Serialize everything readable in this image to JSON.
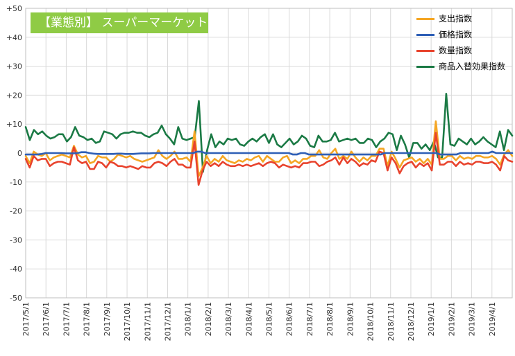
{
  "chart_data": {
    "type": "line",
    "title": "【業態別】 スーパーマーケット",
    "xlabel": "",
    "ylabel": "",
    "ylim": [
      -50,
      50
    ],
    "y_ticks": [
      "+50",
      "+40",
      "+30",
      "+20",
      "+10",
      "0",
      "-10",
      "-20",
      "-30",
      "-40",
      "-50"
    ],
    "x_tick_labels": [
      "2017/5/1",
      "2017/6/1",
      "2017/7/1",
      "2017/8/1",
      "2017/9/1",
      "2017/10/1",
      "2017/11/1",
      "2017/12/1",
      "2018/1/1",
      "2018/2/1",
      "2018/3/1",
      "2018/4/1",
      "2018/5/1",
      "2018/6/1",
      "2018/7/1",
      "2018/8/1",
      "2018/9/1",
      "2018/10/1",
      "2018/11/1",
      "2018/12/1",
      "2019/1/1",
      "2019/2/1",
      "2019/3/1",
      "2019/4/1"
    ],
    "grid": true,
    "legend_position": "top-right",
    "series": [
      {
        "name": "支出指数",
        "color": "#f5a623",
        "values": [
          -1,
          -3.5,
          0.5,
          -0.5,
          -1,
          0,
          -2.5,
          -1.5,
          -1,
          -0.5,
          -1,
          -1.5,
          2.5,
          -0.5,
          -1.5,
          -1,
          -3.5,
          -3,
          -1,
          -1.5,
          -1.5,
          -3,
          -2,
          -0.5,
          -1,
          -1.5,
          -1,
          -2,
          -2.5,
          -3,
          -2.5,
          -2,
          -1.5,
          1,
          -1,
          -2,
          -1,
          0.5,
          -2,
          -2,
          -1.5,
          -3,
          7.5,
          -8,
          -5,
          -1,
          -3.5,
          -2,
          -3,
          -1,
          -2.5,
          -3,
          -3.5,
          -2.5,
          -3,
          -2,
          -2.5,
          -1.5,
          -1,
          -3,
          -1,
          -2,
          -3,
          -3,
          -1.5,
          -1,
          -3.5,
          -2.5,
          -3.5,
          -2,
          -2,
          -1,
          -1,
          1,
          -1.5,
          -2,
          0,
          1.5,
          -2,
          -1,
          -2,
          0.5,
          -1.5,
          -3,
          -1.5,
          -2.5,
          -1,
          -1,
          1.5,
          1.5,
          -4.5,
          0.5,
          -2,
          -5,
          -2.5,
          -2,
          -1.5,
          -3,
          -2,
          -3.5,
          -2,
          -4,
          11,
          -2,
          -2,
          -1,
          -1,
          -2.5,
          -1,
          -2,
          -1.5,
          -2,
          -1,
          -1,
          -1.5,
          -1.5,
          -1,
          -2,
          -4,
          -0.5,
          1,
          -1
        ]
      },
      {
        "name": "価格指数",
        "color": "#2e5fb6",
        "values": [
          -0.5,
          -0.5,
          -0.5,
          -0.5,
          -0.3,
          0,
          0,
          0,
          0,
          0,
          -0.1,
          -0.1,
          -0.1,
          0,
          0.3,
          0.3,
          0,
          -0.2,
          -0.3,
          -0.3,
          -0.3,
          -0.3,
          -0.3,
          -0.2,
          -0.2,
          -0.3,
          -0.3,
          -0.3,
          -0.2,
          -0.1,
          -0.1,
          -0.1,
          0,
          0,
          0,
          0,
          0,
          0,
          0,
          0,
          0,
          0,
          0,
          0.5,
          0.5,
          0,
          0,
          0,
          0,
          0,
          0,
          0,
          0,
          0,
          0,
          0,
          0,
          0,
          0,
          0,
          0,
          0,
          0,
          0,
          0,
          0,
          0,
          -0.5,
          -0.5,
          0,
          0,
          -0.5,
          -0.5,
          -0.5,
          -0.5,
          -0.5,
          -0.5,
          -0.5,
          -0.5,
          -0.5,
          -0.5,
          -0.5,
          -0.5,
          -0.5,
          -0.5,
          -0.5,
          -0.5,
          -0.5,
          -0.5,
          -0.5,
          0,
          0,
          0,
          0,
          0,
          0,
          0,
          0,
          0,
          0,
          0,
          0,
          0,
          0,
          -0.5,
          -0.5,
          -0.5,
          -0.5,
          -0.5,
          0,
          0,
          0,
          0,
          0,
          0,
          0,
          0,
          0.5,
          0,
          0,
          0,
          0,
          0
        ]
      },
      {
        "name": "数量指数",
        "color": "#e8432d",
        "values": [
          -2,
          -5,
          -1,
          -2.5,
          -2,
          -2,
          -4.5,
          -3.5,
          -3,
          -3,
          -3.5,
          -4,
          2,
          -2.5,
          -3.5,
          -3,
          -5.5,
          -5.5,
          -3,
          -3.5,
          -5,
          -3,
          -3.5,
          -4.5,
          -4.5,
          -5,
          -4.5,
          -5,
          -5.5,
          -4.5,
          -5,
          -5,
          -3.5,
          -3,
          -3.5,
          -4.5,
          -3,
          -2,
          -4,
          -4,
          -5,
          -5,
          4,
          -11,
          -6,
          -3,
          -4.5,
          -3.5,
          -4.5,
          -3,
          -4,
          -4.5,
          -4.5,
          -4,
          -4.5,
          -4,
          -4.5,
          -4,
          -3.5,
          -4.5,
          -3.5,
          -3,
          -3.5,
          -5,
          -4,
          -4.5,
          -5,
          -4.5,
          -5,
          -3.5,
          -3.5,
          -3,
          -3,
          -4.5,
          -4,
          -3,
          -2.5,
          -1.5,
          -4,
          -1.5,
          -3.5,
          -2,
          -3,
          -4.5,
          -3.5,
          -4,
          -2.5,
          -3,
          0.5,
          0,
          -6,
          -1.5,
          -3.5,
          -7,
          -4.5,
          -3.5,
          -3,
          -5,
          -3.5,
          -4.5,
          -3.5,
          -6,
          7,
          -4,
          -4,
          -3,
          -3,
          -4.5,
          -3,
          -4,
          -3.5,
          -4,
          -3,
          -3,
          -3.5,
          -3.5,
          -3,
          -4,
          -6,
          -1,
          -2.5,
          -3
        ]
      },
      {
        "name": "商品入替効果指数",
        "color": "#1b7a45",
        "values": [
          9,
          4.5,
          8,
          6.5,
          7.5,
          6,
          5,
          5.5,
          6.5,
          6.5,
          4,
          5.5,
          9,
          6,
          5.5,
          4.5,
          5,
          3.5,
          4,
          7.5,
          7,
          6.5,
          5,
          6.5,
          7,
          7,
          7.5,
          7,
          7,
          6,
          5.5,
          6.5,
          7,
          9.5,
          6.5,
          5,
          3,
          9,
          5,
          4.5,
          5,
          5.5,
          18,
          -6.5,
          1,
          6.5,
          2,
          4,
          3,
          5,
          4.5,
          5,
          3,
          2.5,
          4,
          5,
          4,
          5.5,
          6.5,
          3.5,
          6.5,
          3,
          2,
          3.5,
          5,
          3,
          4,
          6,
          5,
          2.5,
          2,
          6,
          4,
          4,
          4.5,
          7,
          4,
          4.5,
          5,
          4.5,
          5,
          3.5,
          3.5,
          5,
          4.5,
          2,
          4,
          5,
          7,
          6.5,
          1,
          6,
          3,
          -1.5,
          3.5,
          3.5,
          1.5,
          3,
          1,
          4,
          -1.5,
          -1.5,
          20.5,
          3,
          2.5,
          5,
          4,
          3,
          5,
          3,
          4,
          5.5,
          4,
          3,
          2,
          7.5,
          1,
          8,
          6
        ]
      }
    ]
  }
}
